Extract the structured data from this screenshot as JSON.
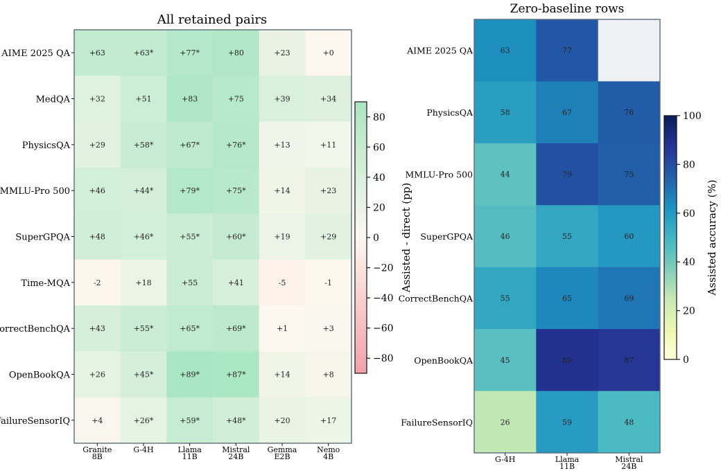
{
  "chart_data": [
    {
      "type": "heatmap",
      "title": "All retained pairs",
      "rows": [
        "AIME 2025 QA",
        "MedQA",
        "PhysicsQA",
        "MMLU-Pro 500",
        "SuperGPQA",
        "Time-MQA",
        "CorrectBenchQA",
        "OpenBookQA",
        "FailureSensorIQ"
      ],
      "columns": [
        [
          "Granite",
          "8B"
        ],
        [
          "G-4H"
        ],
        [
          "Llama",
          "11B"
        ],
        [
          "Mistral",
          "24B"
        ],
        [
          "Gemma",
          "E2B"
        ],
        [
          "Nemo",
          "4B"
        ]
      ],
      "values": [
        [
          63,
          63,
          77,
          80,
          23,
          0
        ],
        [
          32,
          51,
          83,
          75,
          39,
          34
        ],
        [
          29,
          58,
          67,
          76,
          13,
          11
        ],
        [
          46,
          44,
          79,
          75,
          14,
          23
        ],
        [
          48,
          46,
          55,
          60,
          19,
          29
        ],
        [
          -2,
          18,
          55,
          41,
          -5,
          -1
        ],
        [
          43,
          55,
          65,
          69,
          1,
          3
        ],
        [
          26,
          45,
          89,
          87,
          14,
          8
        ],
        [
          4,
          26,
          59,
          48,
          20,
          17
        ]
      ],
      "cell_labels": [
        [
          "+63",
          "+63*",
          "+77*",
          "+80",
          "+23",
          "+0"
        ],
        [
          "+32",
          "+51",
          "+83",
          "+75",
          "+39",
          "+34"
        ],
        [
          "+29",
          "+58*",
          "+67*",
          "+76*",
          "+13",
          "+11"
        ],
        [
          "+46",
          "+44*",
          "+79*",
          "+75*",
          "+14",
          "+23"
        ],
        [
          "+48",
          "+46*",
          "+55*",
          "+60*",
          "+19",
          "+29"
        ],
        [
          "-2",
          "+18",
          "+55",
          "+41",
          "-5",
          "-1"
        ],
        [
          "+43",
          "+55*",
          "+65*",
          "+69*",
          "+1",
          "+3"
        ],
        [
          "+26",
          "+45*",
          "+89*",
          "+87*",
          "+14",
          "+8"
        ],
        [
          "+4",
          "+26*",
          "+59*",
          "+48*",
          "+20",
          "+17"
        ]
      ],
      "colorbar": {
        "label": "Assisted - direct (pp)",
        "range": [
          -90,
          90
        ],
        "ticks": [
          "80",
          "60",
          "40",
          "20",
          "0",
          "−20",
          "−40",
          "−60",
          "−80"
        ],
        "tick_values": [
          80,
          60,
          40,
          20,
          0,
          -20,
          -40,
          -60,
          -80
        ],
        "colors": {
          "negative": "#f4a0a8",
          "zero": "#fdf8ef",
          "positive": "#a9e6c3"
        }
      }
    },
    {
      "type": "heatmap",
      "title": "Zero-baseline rows",
      "rows": [
        "AIME 2025 QA",
        "PhysicsQA",
        "MMLU-Pro 500",
        "SuperGPQA",
        "CorrectBenchQA",
        "OpenBookQA",
        "FailureSensorIQ"
      ],
      "columns": [
        [
          "G-4H"
        ],
        [
          "Llama",
          "11B"
        ],
        [
          "Mistral",
          "24B"
        ]
      ],
      "values": [
        [
          63,
          77,
          null
        ],
        [
          58,
          67,
          76
        ],
        [
          44,
          79,
          75
        ],
        [
          46,
          55,
          60
        ],
        [
          55,
          65,
          69
        ],
        [
          45,
          89,
          87
        ],
        [
          26,
          59,
          48
        ]
      ],
      "cell_labels": [
        [
          "63",
          "77",
          ""
        ],
        [
          "58",
          "67",
          "76"
        ],
        [
          "44",
          "79",
          "75"
        ],
        [
          "46",
          "55",
          "60"
        ],
        [
          "55",
          "65",
          "69"
        ],
        [
          "45",
          "89",
          "87"
        ],
        [
          "26",
          "59",
          "48"
        ]
      ],
      "missing_color": "#eef0f4",
      "colorbar": {
        "label": "Assisted accuracy (%)",
        "range": [
          0,
          100
        ],
        "ticks": [
          "100",
          "80",
          "60",
          "40",
          "20",
          "0"
        ],
        "tick_values": [
          100,
          80,
          60,
          40,
          20,
          0
        ],
        "colormap": "YlGnBu"
      }
    }
  ]
}
